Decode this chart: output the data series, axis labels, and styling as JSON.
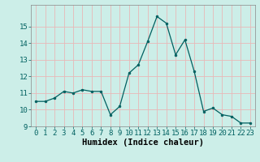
{
  "x": [
    0,
    1,
    2,
    3,
    4,
    5,
    6,
    7,
    8,
    9,
    10,
    11,
    12,
    13,
    14,
    15,
    16,
    17,
    18,
    19,
    20,
    21,
    22,
    23
  ],
  "y": [
    10.5,
    10.5,
    10.7,
    11.1,
    11.0,
    11.2,
    11.1,
    11.1,
    9.7,
    10.2,
    12.2,
    12.7,
    14.1,
    15.6,
    15.2,
    13.3,
    14.2,
    12.3,
    9.9,
    10.1,
    9.7,
    9.6,
    9.2,
    9.2
  ],
  "xlabel": "Humidex (Indice chaleur)",
  "ylim": [
    9,
    16
  ],
  "xlim": [
    -0.5,
    23.5
  ],
  "yticks": [
    9,
    10,
    11,
    12,
    13,
    14,
    15
  ],
  "xticks": [
    0,
    1,
    2,
    3,
    4,
    5,
    6,
    7,
    8,
    9,
    10,
    11,
    12,
    13,
    14,
    15,
    16,
    17,
    18,
    19,
    20,
    21,
    22,
    23
  ],
  "line_color": "#006060",
  "marker_color": "#006060",
  "bg_color": "#cceee8",
  "grid_color": "#e8b8b8",
  "tick_label_fontsize": 6.5,
  "xlabel_fontsize": 7.5
}
